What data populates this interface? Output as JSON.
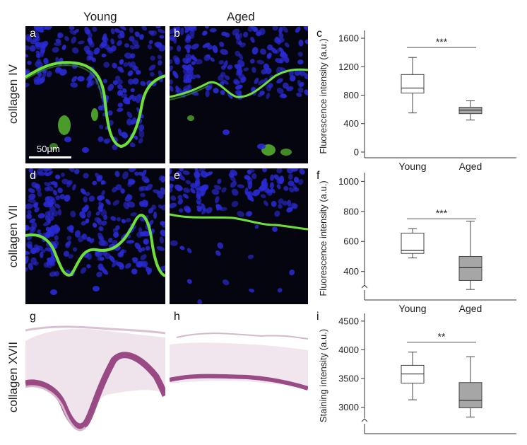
{
  "columns": {
    "young": "Young",
    "aged": "Aged"
  },
  "rows": {
    "r1": "collagen IV",
    "r2": "collagen VII",
    "r3": "collagen XVII"
  },
  "panels": {
    "a": "a",
    "b": "b",
    "d": "d",
    "e": "e",
    "g": "g",
    "h": "h"
  },
  "scale_bar": "50μm",
  "colors": {
    "fluor_bg": "#05050f",
    "nuclei": "#2a2ad6",
    "membrane": "#6ee03a",
    "stain": "#8a2f73",
    "stain_light": "#d6b8cc",
    "box_young": "#ffffff",
    "box_aged": "#a6a6a6"
  },
  "chart_data": [
    {
      "panel_label": "c",
      "type": "box",
      "ylabel": "Fluorescence intensity (a.u.)",
      "categories": [
        "Young",
        "Aged"
      ],
      "yticks": [
        0,
        400,
        800,
        1200,
        1600
      ],
      "ylim": [
        -80,
        1650
      ],
      "axis_break": false,
      "significance": "***",
      "boxes": [
        {
          "name": "Young",
          "min": 550,
          "q1": 830,
          "median": 900,
          "q3": 1090,
          "max": 1330
        },
        {
          "name": "Aged",
          "min": 450,
          "q1": 540,
          "median": 590,
          "q3": 630,
          "max": 720
        }
      ]
    },
    {
      "panel_label": "f",
      "type": "box",
      "ylabel": "Fluorescence intensity (a.u.)",
      "categories": [
        "Young",
        "Aged"
      ],
      "yticks": [
        400,
        600,
        800,
        1000
      ],
      "ylim": [
        210,
        1030
      ],
      "axis_break": true,
      "significance": "***",
      "boxes": [
        {
          "name": "Young",
          "min": 490,
          "q1": 520,
          "median": 540,
          "q3": 655,
          "max": 685
        },
        {
          "name": "Aged",
          "min": 280,
          "q1": 340,
          "median": 425,
          "q3": 500,
          "max": 735
        }
      ]
    },
    {
      "panel_label": "i",
      "type": "box",
      "ylabel": "Staining intensity (a.u.)",
      "categories": [
        "Young",
        "Aged"
      ],
      "yticks": [
        3000,
        3500,
        4000,
        4500
      ],
      "ylim": [
        2540,
        4560
      ],
      "axis_break": true,
      "significance": "**",
      "boxes": [
        {
          "name": "Young",
          "min": 3130,
          "q1": 3420,
          "median": 3580,
          "q3": 3730,
          "max": 3960
        },
        {
          "name": "Aged",
          "min": 2830,
          "q1": 2990,
          "median": 3120,
          "q3": 3430,
          "max": 3880
        }
      ]
    }
  ]
}
